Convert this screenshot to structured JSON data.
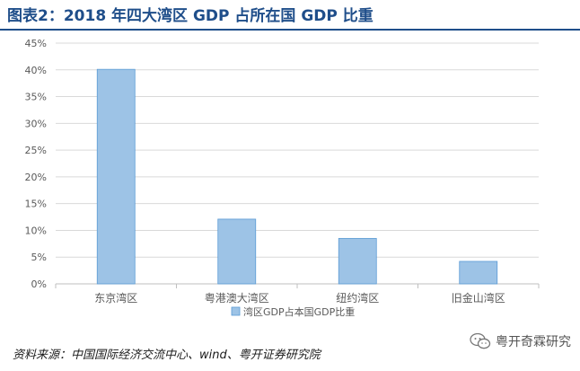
{
  "header": {
    "title": "图表2：2018 年四大湾区 GDP 占所在国 GDP 比重"
  },
  "chart_data": {
    "type": "bar",
    "categories": [
      "东京湾区",
      "粤港澳大湾区",
      "纽约湾区",
      "旧金山湾区"
    ],
    "series": [
      {
        "name": "湾区GDP占本国GDP比重",
        "values": [
          40.1,
          12.1,
          8.5,
          4.2
        ]
      }
    ],
    "ylim": [
      0,
      45
    ],
    "yticks": [
      0,
      5,
      10,
      15,
      20,
      25,
      30,
      35,
      40,
      45
    ],
    "ytick_format": "percent",
    "grid": true,
    "legend_position": "bottom",
    "bar_color": "#9dc3e6",
    "bar_edge_color": "#5b9bd5",
    "axis_color": "#bfbfbf",
    "tick_text_color": "#595959"
  },
  "footer": {
    "source": "资料来源：中国国际经济交流中心、wind、粤开证券研究院",
    "watermark": "粤开奇霖研究",
    "watermark_icon": "wechat-icon"
  }
}
